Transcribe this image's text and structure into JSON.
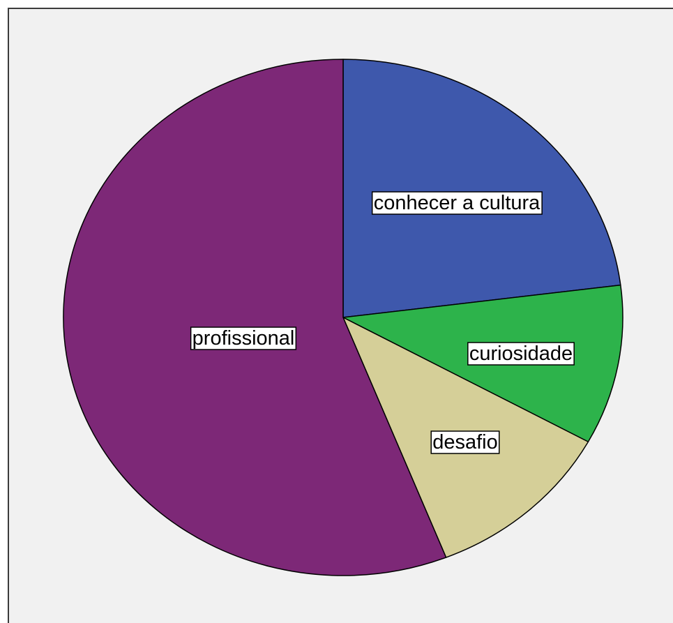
{
  "chart_data": {
    "type": "pie",
    "labels": [
      "conhecer a cultura",
      "curiosidade",
      "desafio",
      "profissional"
    ],
    "values": [
      23.0,
      10.0,
      11.0,
      56.0
    ],
    "colors": [
      "#3e58ac",
      "#2db34b",
      "#d5cf98",
      "#7d2877"
    ],
    "start": "12 o'clock",
    "direction": "clockwise",
    "legend": "none",
    "data_labels": "category name"
  },
  "background": "#f1f1f1",
  "border_color": "#3b3b3b"
}
